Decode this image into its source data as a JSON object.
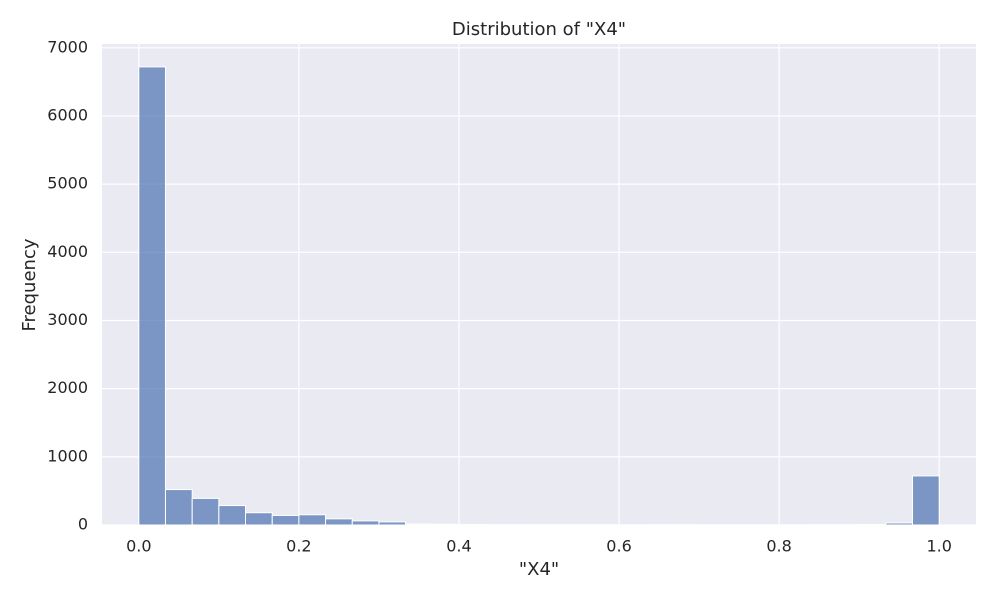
{
  "chart_data": {
    "type": "histogram",
    "title": "Distribution of \"X4\"",
    "x_label": "\"X4\"",
    "y_label": "Frequency",
    "bins": [
      0,
      0.0333,
      0.0667,
      0.1,
      0.1333,
      0.1667,
      0.2,
      0.2333,
      0.2667,
      0.3,
      0.3333,
      0.3667,
      0.4,
      0.4333,
      0.4667,
      0.5,
      0.5333,
      0.5667,
      0.6,
      0.6333,
      0.6667,
      0.7,
      0.7333,
      0.7667,
      0.8,
      0.8333,
      0.8667,
      0.9,
      0.9333,
      0.9667,
      1
    ],
    "counts": [
      6720,
      520,
      390,
      285,
      180,
      140,
      150,
      90,
      60,
      45,
      15,
      10,
      8,
      5,
      5,
      4,
      4,
      4,
      3,
      5,
      4,
      3,
      3,
      3,
      3,
      5,
      5,
      8,
      30,
      720
    ],
    "color": "#4c72b0",
    "xlim": [
      -0.046,
      1.046
    ],
    "ylim": [
      0,
      7056
    ],
    "xticks": [
      {
        "value": 0,
        "label": "0.0"
      },
      0.2,
      0.4,
      0.6,
      0.8,
      {
        "value": 1,
        "label": "1.0"
      }
    ],
    "yticks": [
      0,
      1000,
      2000,
      3000,
      4000,
      5000,
      6000,
      7000
    ],
    "grid": true,
    "background": "#eaeaf2"
  }
}
